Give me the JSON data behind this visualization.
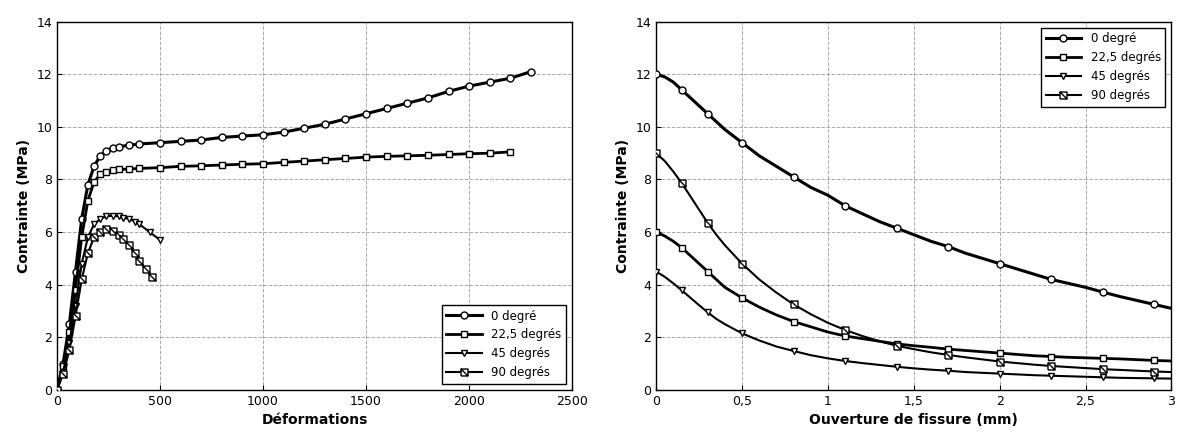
{
  "left_plot": {
    "xlabel": "Déformations",
    "ylabel": "Contrainte (MPa)",
    "xlim": [
      0,
      2500
    ],
    "ylim": [
      0,
      14
    ],
    "xticks": [
      0,
      500,
      1000,
      1500,
      2000,
      2500
    ],
    "yticks": [
      0,
      2,
      4,
      6,
      8,
      10,
      12,
      14
    ],
    "series": [
      {
        "label": "0 degré",
        "lw": 2.2,
        "marker": "o",
        "mfc": "white",
        "mec": "black",
        "ms": 5,
        "x": [
          0,
          30,
          60,
          90,
          120,
          150,
          180,
          210,
          240,
          270,
          300,
          350,
          400,
          500,
          600,
          700,
          800,
          900,
          1000,
          1100,
          1200,
          1300,
          1400,
          1500,
          1600,
          1700,
          1800,
          1900,
          2000,
          2100,
          2200,
          2300
        ],
        "y": [
          0,
          1.0,
          2.5,
          4.5,
          6.5,
          7.8,
          8.5,
          8.9,
          9.1,
          9.2,
          9.25,
          9.3,
          9.35,
          9.4,
          9.45,
          9.5,
          9.6,
          9.65,
          9.7,
          9.8,
          9.95,
          10.1,
          10.3,
          10.5,
          10.7,
          10.9,
          11.1,
          11.35,
          11.55,
          11.7,
          11.85,
          12.1
        ]
      },
      {
        "label": "22,5 degrés",
        "lw": 2.0,
        "marker": "s",
        "mfc": "white",
        "mec": "black",
        "ms": 5,
        "x": [
          0,
          30,
          60,
          90,
          120,
          150,
          180,
          210,
          240,
          270,
          300,
          350,
          400,
          500,
          600,
          700,
          800,
          900,
          1000,
          1100,
          1200,
          1300,
          1400,
          1500,
          1600,
          1700,
          1800,
          1900,
          2000,
          2100,
          2200
        ],
        "y": [
          0,
          0.9,
          2.2,
          3.8,
          5.8,
          7.2,
          7.9,
          8.2,
          8.3,
          8.35,
          8.38,
          8.4,
          8.42,
          8.45,
          8.5,
          8.52,
          8.55,
          8.58,
          8.6,
          8.65,
          8.7,
          8.75,
          8.8,
          8.85,
          8.88,
          8.9,
          8.92,
          8.95,
          8.98,
          9.0,
          9.05
        ]
      },
      {
        "label": "45 degrés",
        "lw": 1.5,
        "marker": "v",
        "mfc": "white",
        "mec": "black",
        "ms": 5,
        "x": [
          0,
          30,
          60,
          90,
          120,
          150,
          180,
          210,
          240,
          270,
          300,
          320,
          350,
          380,
          400,
          450,
          500
        ],
        "y": [
          0,
          0.7,
          1.8,
          3.2,
          4.8,
          5.8,
          6.3,
          6.5,
          6.6,
          6.62,
          6.6,
          6.55,
          6.5,
          6.4,
          6.3,
          6.0,
          5.7
        ]
      },
      {
        "label": "90 degrés",
        "lw": 1.5,
        "marker": "Z",
        "mfc": "white",
        "mec": "black",
        "ms": 5,
        "x": [
          0,
          30,
          60,
          90,
          120,
          150,
          180,
          210,
          240,
          270,
          300,
          320,
          350,
          380,
          400,
          430,
          460
        ],
        "y": [
          0,
          0.6,
          1.5,
          2.8,
          4.2,
          5.2,
          5.8,
          6.0,
          6.1,
          6.05,
          5.9,
          5.75,
          5.5,
          5.2,
          4.9,
          4.6,
          4.3
        ]
      }
    ]
  },
  "right_plot": {
    "xlabel": "Ouverture de fissure (mm)",
    "ylabel": "Contrainte (MPa)",
    "xlim": [
      0,
      3
    ],
    "ylim": [
      0,
      14
    ],
    "xticks": [
      0,
      0.5,
      1.0,
      1.5,
      2.0,
      2.5,
      3.0
    ],
    "xtick_labels": [
      "0",
      "0,5",
      "1",
      "1,5",
      "2",
      "2,5",
      "3"
    ],
    "yticks": [
      0,
      2,
      4,
      6,
      8,
      10,
      12,
      14
    ],
    "series": [
      {
        "label": "0 degré",
        "lw": 2.2,
        "marker": "o",
        "mfc": "white",
        "mec": "black",
        "ms": 5,
        "marker_every": 3,
        "x": [
          0,
          0.05,
          0.1,
          0.15,
          0.2,
          0.25,
          0.3,
          0.35,
          0.4,
          0.5,
          0.6,
          0.7,
          0.8,
          0.9,
          1.0,
          1.1,
          1.2,
          1.3,
          1.4,
          1.5,
          1.6,
          1.7,
          1.8,
          1.9,
          2.0,
          2.1,
          2.2,
          2.3,
          2.4,
          2.5,
          2.6,
          2.7,
          2.8,
          2.9,
          3.0
        ],
        "y": [
          12.0,
          11.9,
          11.7,
          11.4,
          11.1,
          10.8,
          10.5,
          10.2,
          9.9,
          9.4,
          8.9,
          8.5,
          8.1,
          7.7,
          7.4,
          7.0,
          6.7,
          6.4,
          6.15,
          5.9,
          5.65,
          5.45,
          5.2,
          5.0,
          4.8,
          4.6,
          4.4,
          4.2,
          4.05,
          3.9,
          3.72,
          3.55,
          3.4,
          3.25,
          3.1
        ]
      },
      {
        "label": "22,5 degrés",
        "lw": 2.0,
        "marker": "s",
        "mfc": "white",
        "mec": "black",
        "ms": 5,
        "marker_every": 3,
        "x": [
          0,
          0.05,
          0.1,
          0.15,
          0.2,
          0.25,
          0.3,
          0.35,
          0.4,
          0.5,
          0.6,
          0.7,
          0.8,
          0.9,
          1.0,
          1.1,
          1.2,
          1.3,
          1.4,
          1.5,
          1.6,
          1.7,
          1.8,
          1.9,
          2.0,
          2.1,
          2.2,
          2.3,
          2.4,
          2.5,
          2.6,
          2.7,
          2.8,
          2.9,
          3.0
        ],
        "y": [
          6.0,
          5.85,
          5.65,
          5.4,
          5.1,
          4.8,
          4.5,
          4.2,
          3.9,
          3.5,
          3.15,
          2.85,
          2.6,
          2.4,
          2.2,
          2.05,
          1.95,
          1.85,
          1.75,
          1.68,
          1.62,
          1.55,
          1.5,
          1.45,
          1.4,
          1.35,
          1.3,
          1.27,
          1.24,
          1.22,
          1.2,
          1.18,
          1.15,
          1.12,
          1.1
        ]
      },
      {
        "label": "45 degrés",
        "lw": 1.5,
        "marker": "v",
        "mfc": "white",
        "mec": "black",
        "ms": 5,
        "marker_every": 3,
        "x": [
          0,
          0.05,
          0.1,
          0.15,
          0.2,
          0.25,
          0.3,
          0.35,
          0.4,
          0.5,
          0.6,
          0.7,
          0.8,
          0.9,
          1.0,
          1.1,
          1.2,
          1.3,
          1.4,
          1.5,
          1.6,
          1.7,
          1.8,
          1.9,
          2.0,
          2.1,
          2.2,
          2.3,
          2.4,
          2.5,
          2.6,
          2.7,
          2.8,
          2.9,
          3.0
        ],
        "y": [
          4.5,
          4.3,
          4.05,
          3.78,
          3.5,
          3.22,
          2.95,
          2.7,
          2.5,
          2.15,
          1.88,
          1.65,
          1.48,
          1.32,
          1.2,
          1.1,
          1.02,
          0.95,
          0.88,
          0.82,
          0.77,
          0.73,
          0.68,
          0.65,
          0.62,
          0.59,
          0.56,
          0.54,
          0.52,
          0.5,
          0.48,
          0.46,
          0.45,
          0.44,
          0.43
        ]
      },
      {
        "label": "90 degrés",
        "lw": 1.5,
        "marker": "Z",
        "mfc": "white",
        "mec": "black",
        "ms": 5,
        "marker_every": 3,
        "x": [
          0,
          0.05,
          0.1,
          0.15,
          0.2,
          0.25,
          0.3,
          0.35,
          0.4,
          0.5,
          0.6,
          0.7,
          0.8,
          0.9,
          1.0,
          1.1,
          1.2,
          1.3,
          1.4,
          1.5,
          1.6,
          1.7,
          1.8,
          1.9,
          2.0,
          2.1,
          2.2,
          2.3,
          2.4,
          2.5,
          2.6,
          2.7,
          2.8,
          2.9,
          3.0
        ],
        "y": [
          9.0,
          8.7,
          8.3,
          7.85,
          7.35,
          6.85,
          6.35,
          5.9,
          5.5,
          4.8,
          4.2,
          3.7,
          3.25,
          2.88,
          2.55,
          2.28,
          2.05,
          1.85,
          1.68,
          1.55,
          1.43,
          1.33,
          1.24,
          1.16,
          1.08,
          1.02,
          0.96,
          0.91,
          0.87,
          0.83,
          0.79,
          0.76,
          0.73,
          0.7,
          0.68
        ]
      }
    ]
  },
  "background_color": "white",
  "grid_linestyle": "--",
  "grid_color": "#aaaaaa",
  "grid_linewidth": 0.7
}
